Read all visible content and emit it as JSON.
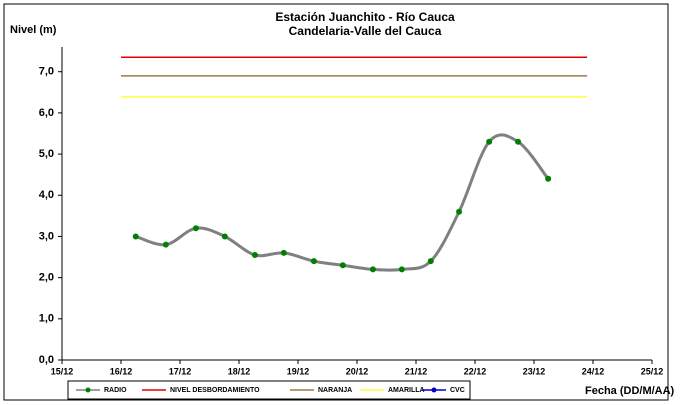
{
  "chart_data": {
    "type": "line",
    "title": [
      "Estación Juanchito - Río Cauca",
      "Candelaria-Valle del Cauca"
    ],
    "y_label": "Nivel (m)",
    "x_label": "Fecha (DD/M/AA)",
    "xlim": [
      15,
      25
    ],
    "xticks": [
      {
        "value": 15,
        "label": "15/12"
      },
      {
        "value": 16,
        "label": "16/12"
      },
      {
        "value": 17,
        "label": "17/12"
      },
      {
        "value": 18,
        "label": "18/12"
      },
      {
        "value": 19,
        "label": "19/12"
      },
      {
        "value": 20,
        "label": "20/12"
      },
      {
        "value": 21,
        "label": "21/12"
      },
      {
        "value": 22,
        "label": "22/12"
      },
      {
        "value": 23,
        "label": "23/12"
      },
      {
        "value": 24,
        "label": "24/12"
      },
      {
        "value": 25,
        "label": "25/12"
      }
    ],
    "ylim": [
      0,
      7.6
    ],
    "yticks": [
      {
        "value": 0,
        "label": "0,0"
      },
      {
        "value": 1,
        "label": "1,0"
      },
      {
        "value": 2,
        "label": "2,0"
      },
      {
        "value": 3,
        "label": "3,0"
      },
      {
        "value": 4,
        "label": "4,0"
      },
      {
        "value": 5,
        "label": "5,0"
      },
      {
        "value": 6,
        "label": "6,0"
      },
      {
        "value": 7,
        "label": "7,0"
      }
    ],
    "series": [
      {
        "name": "RADIO",
        "color": "#808080",
        "marker_color": "#008000",
        "smooth": true,
        "x": [
          16.25,
          16.76,
          17.27,
          17.76,
          18.27,
          18.76,
          19.27,
          19.76,
          20.27,
          20.76,
          21.25,
          21.73,
          22.24,
          22.73,
          23.24
        ],
        "values": [
          3.0,
          2.8,
          3.2,
          3.0,
          2.55,
          2.6,
          2.4,
          2.3,
          2.2,
          2.2,
          2.4,
          3.6,
          5.3,
          5.3,
          4.4
        ]
      },
      {
        "name": "NIVEL DESBORDAMIENTO",
        "color": "#e00000",
        "x": [
          16,
          23.9
        ],
        "values": [
          7.35,
          7.35
        ]
      },
      {
        "name": "NARANJA",
        "color": "#9c7a4a",
        "x": [
          16,
          23.9
        ],
        "values": [
          6.9,
          6.9
        ]
      },
      {
        "name": "AMARILLA",
        "color": "#ffff40",
        "x": [
          16,
          23.9
        ],
        "values": [
          6.39,
          6.39
        ]
      },
      {
        "name": "CVC",
        "color": "#0000cc",
        "marker_color": "#0000cc",
        "x": [],
        "values": []
      }
    ]
  }
}
